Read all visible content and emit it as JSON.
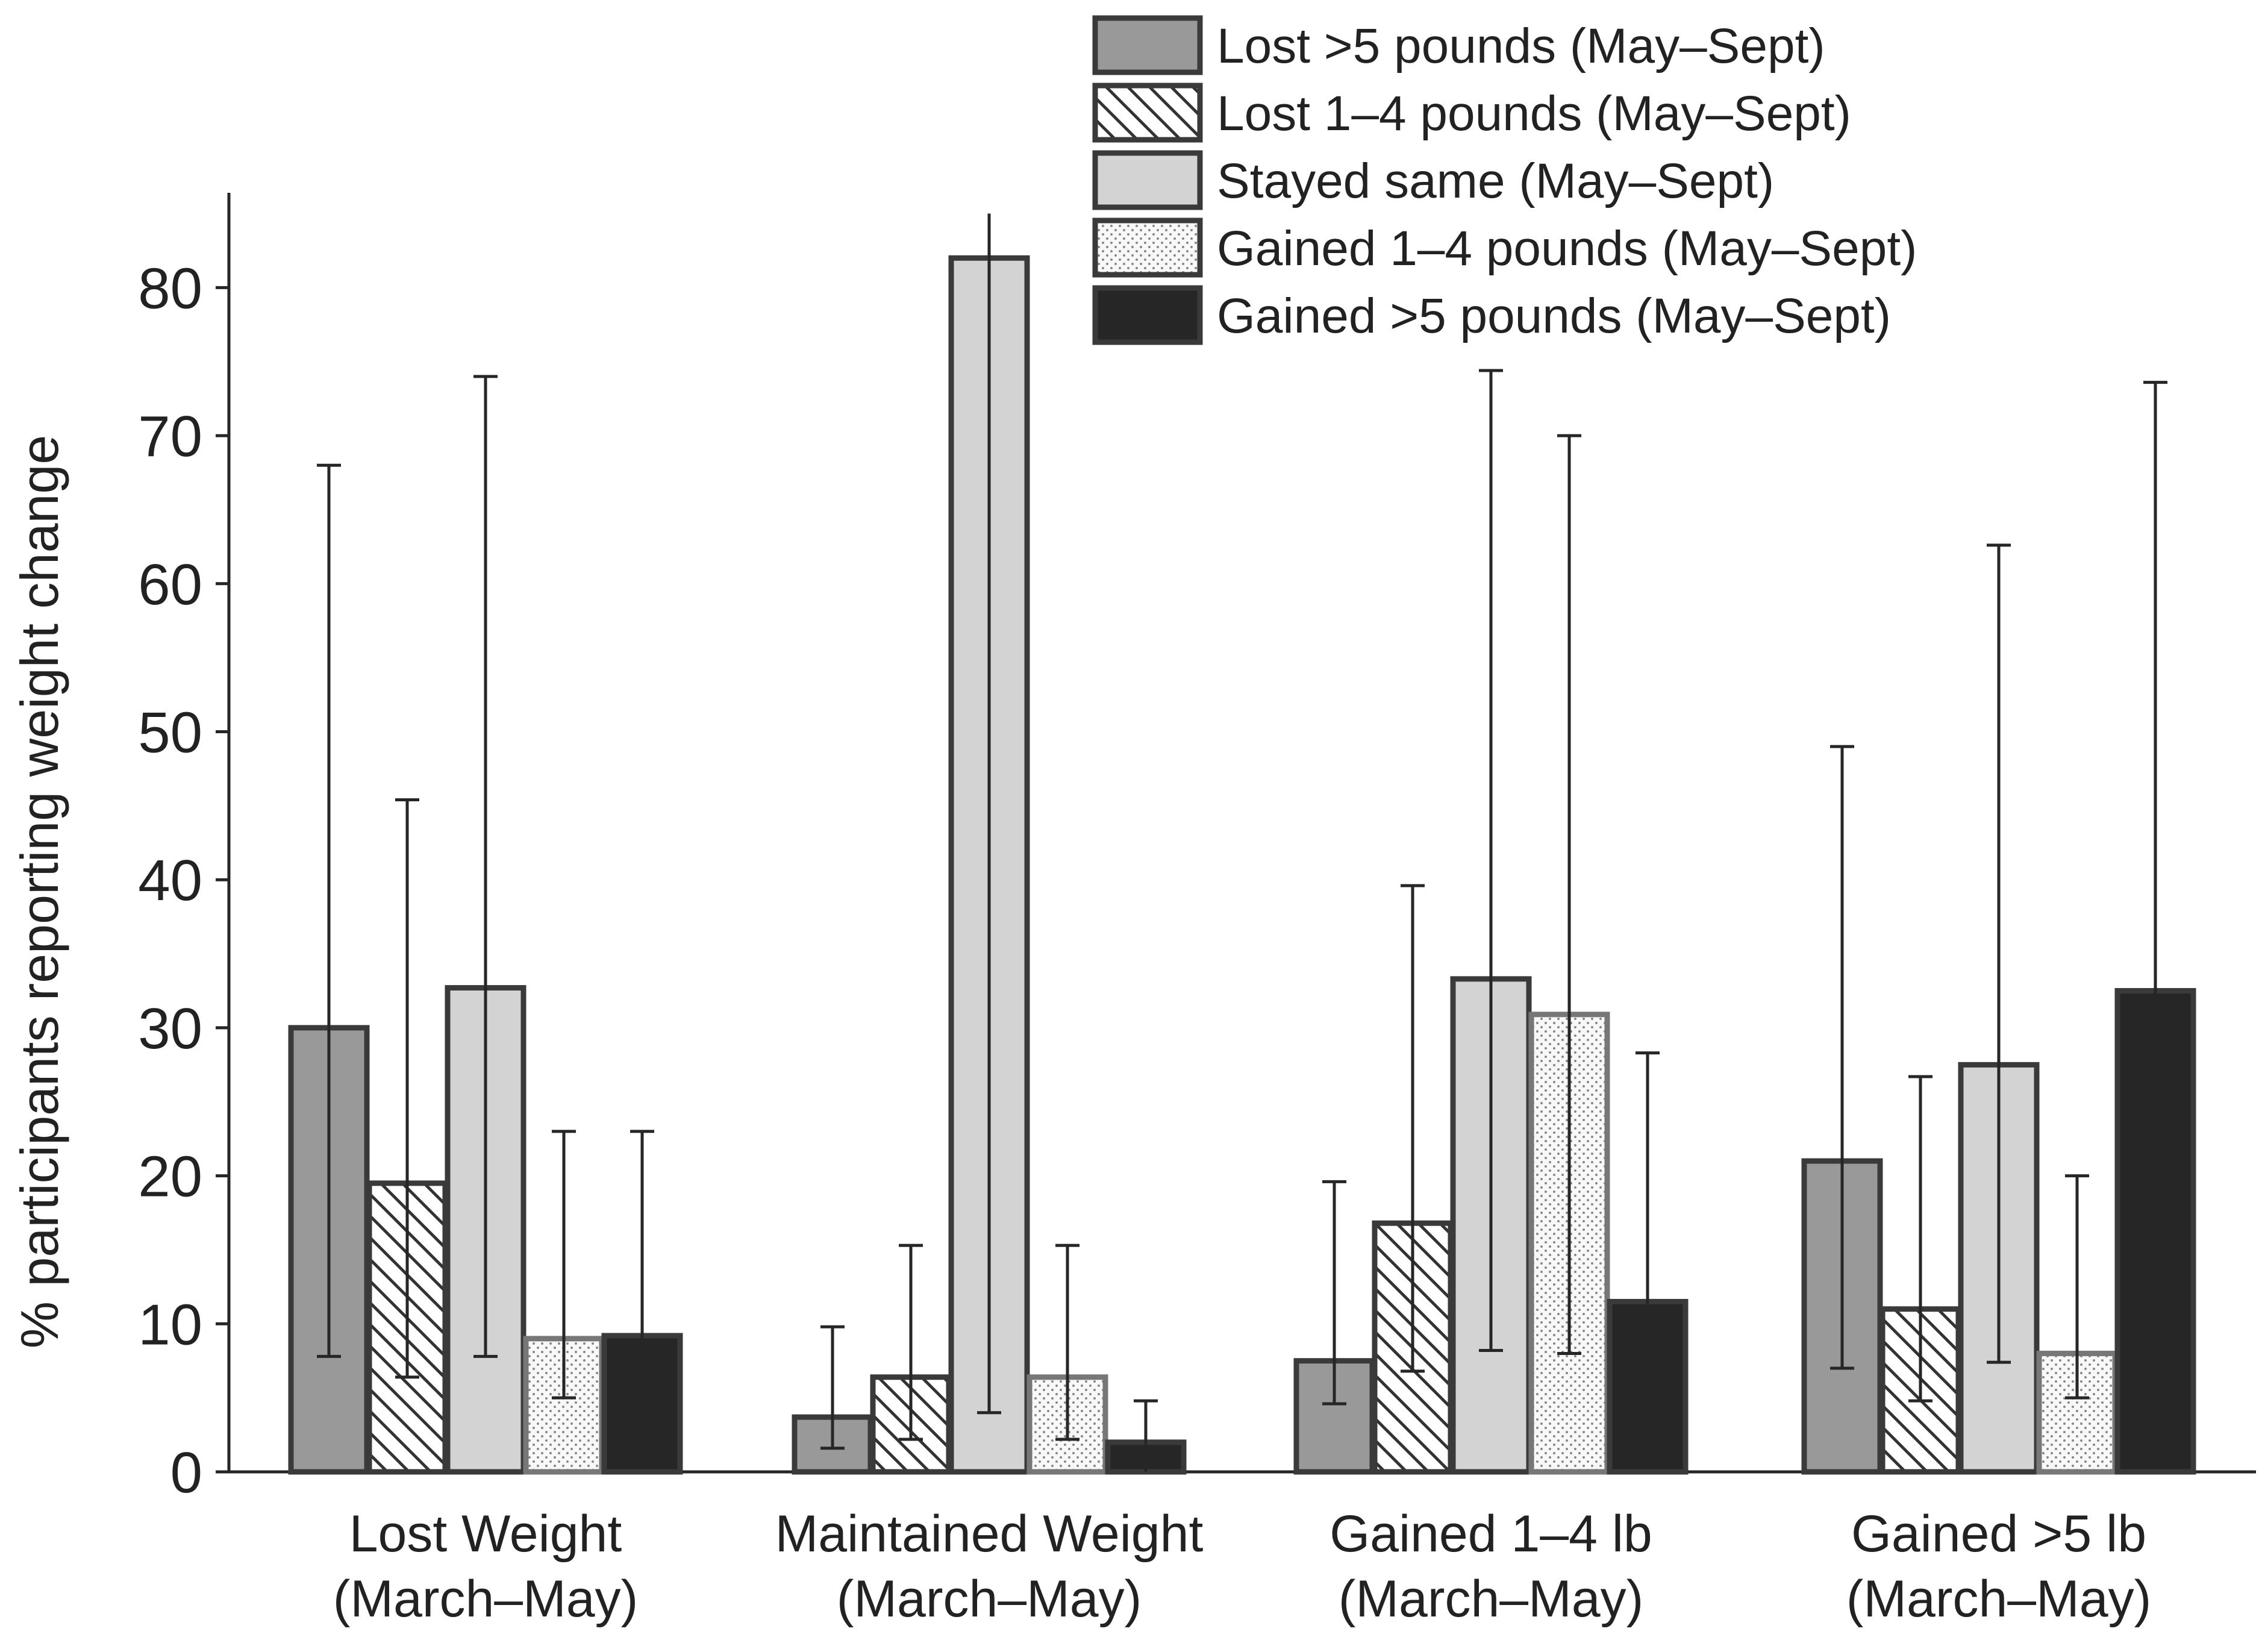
{
  "chart_data": {
    "type": "bar",
    "ylabel": "% participants reporting weight change",
    "xlabel": "",
    "ylim": [
      0,
      86
    ],
    "yticks": [
      0,
      10,
      20,
      30,
      40,
      50,
      60,
      70,
      80
    ],
    "legend_position": "top-right",
    "categories": [
      [
        "Lost Weight",
        "(March–May)"
      ],
      [
        "Maintained Weight",
        "(March–May)"
      ],
      [
        "Gained 1–4 lb",
        "(March–May)"
      ],
      [
        "Gained >5 lb",
        "(March–May)"
      ]
    ],
    "series": [
      {
        "name": "Lost >5 pounds (May–Sept)",
        "pattern": "solid-gray",
        "fill": "#999999",
        "values": [
          30,
          3.7,
          7.5,
          21
        ],
        "error_low": [
          7.8,
          1.6,
          4.6,
          7
        ],
        "error_high": [
          68,
          9.8,
          19.6,
          49
        ]
      },
      {
        "name": "Lost 1–4 pounds (May–Sept)",
        "pattern": "diagonal-hatch",
        "fill": "#ffffff",
        "values": [
          19.5,
          6.4,
          16.8,
          11
        ],
        "error_low": [
          6.4,
          2.2,
          6.8,
          4.8
        ],
        "error_high": [
          45.4,
          15.3,
          39.6,
          26.7
        ]
      },
      {
        "name": "Stayed same (May–Sept)",
        "pattern": "solid-light",
        "fill": "#d3d3d3",
        "values": [
          32.7,
          82,
          33.3,
          27.5
        ],
        "error_low": [
          7.8,
          4,
          8.2,
          7.4
        ],
        "error_high": [
          74,
          85,
          74.4,
          62.6
        ]
      },
      {
        "name": "Gained 1–4 pounds (May–Sept)",
        "pattern": "dotted",
        "fill": "#f6f6f6",
        "values": [
          9,
          6.4,
          30.9,
          8
        ],
        "error_low": [
          5,
          2.2,
          8,
          5
        ],
        "error_high": [
          23,
          15.3,
          70,
          20
        ]
      },
      {
        "name": "Gained >5 pounds (May–Sept)",
        "pattern": "solid-dark",
        "fill": "#262626",
        "values": [
          9.2,
          2,
          11.5,
          32.5
        ],
        "error_low": [
          5,
          0,
          5.5,
          7.6
        ],
        "error_high": [
          23,
          4.8,
          28.3,
          73.6
        ]
      }
    ]
  }
}
